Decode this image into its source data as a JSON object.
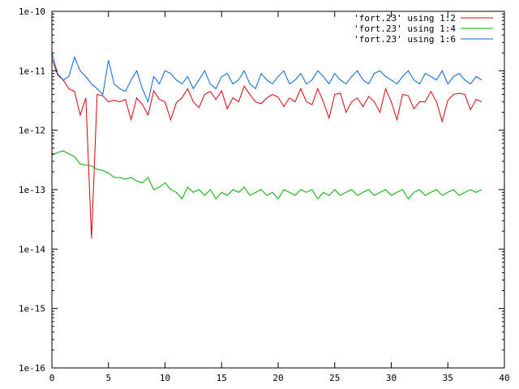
{
  "chart_data": {
    "type": "line",
    "yscale": "log",
    "grid": false,
    "legend_position": "top-right",
    "xlim": [
      0,
      40
    ],
    "ylim_exponent": [
      -16,
      -10
    ],
    "xticks": [
      {
        "value": 0,
        "label": "0"
      },
      {
        "value": 5,
        "label": "5"
      },
      {
        "value": 10,
        "label": "10"
      },
      {
        "value": 15,
        "label": "15"
      },
      {
        "value": 20,
        "label": "20"
      },
      {
        "value": 25,
        "label": "25"
      },
      {
        "value": 30,
        "label": "30"
      },
      {
        "value": 35,
        "label": "35"
      },
      {
        "value": 40,
        "label": "40"
      }
    ],
    "yticks": [
      {
        "exp": -10,
        "label": "1e-10"
      },
      {
        "exp": -11,
        "label": "1e-11"
      },
      {
        "exp": -12,
        "label": "1e-12"
      },
      {
        "exp": -13,
        "label": "1e-13"
      },
      {
        "exp": -14,
        "label": "1e-14"
      },
      {
        "exp": -15,
        "label": "1e-15"
      },
      {
        "exp": -16,
        "label": "1e-16"
      }
    ],
    "x": [
      0,
      0.5,
      1,
      1.5,
      2,
      2.5,
      3,
      3.5,
      4,
      4.5,
      5,
      5.5,
      6,
      6.5,
      7,
      7.5,
      8,
      8.5,
      9,
      9.5,
      10,
      10.5,
      11,
      11.5,
      12,
      12.5,
      13,
      13.5,
      14,
      14.5,
      15,
      15.5,
      16,
      16.5,
      17,
      17.5,
      18,
      18.5,
      19,
      19.5,
      20,
      20.5,
      21,
      21.5,
      22,
      22.5,
      23,
      23.5,
      24,
      24.5,
      25,
      25.5,
      26,
      26.5,
      27,
      27.5,
      28,
      28.5,
      29,
      29.5,
      30,
      30.5,
      31,
      31.5,
      32,
      32.5,
      33,
      33.5,
      34,
      34.5,
      35,
      35.5,
      36,
      36.5,
      37,
      37.5,
      38
    ],
    "series": [
      {
        "name": "'fort.23' using 1:2",
        "color": "#e00000",
        "values": [
          1.6e-11,
          8.5e-12,
          7e-12,
          5e-12,
          4.5e-12,
          1.8e-12,
          3.5e-12,
          1.5e-14,
          4e-12,
          3.8e-12,
          3e-12,
          3.2e-12,
          3e-12,
          3.3e-12,
          1.5e-12,
          3.5e-12,
          2.7e-12,
          1.8e-12,
          4.6e-12,
          3.3e-12,
          3e-12,
          1.5e-12,
          2.9e-12,
          3.5e-12,
          5e-12,
          3e-12,
          2.4e-12,
          4e-12,
          4.5e-12,
          3.3e-12,
          4.6e-12,
          2.3e-12,
          3.5e-12,
          3e-12,
          5.5e-12,
          4e-12,
          3e-12,
          2.8e-12,
          3.5e-12,
          4e-12,
          3.6e-12,
          2.5e-12,
          3.5e-12,
          3e-12,
          5e-12,
          3e-12,
          2.7e-12,
          5e-12,
          3e-12,
          1.6e-12,
          4e-12,
          4.2e-12,
          2e-12,
          3e-12,
          3.5e-12,
          2.5e-12,
          3.7e-12,
          3e-12,
          2e-12,
          5e-12,
          3e-12,
          1.5e-12,
          4e-12,
          3.8e-12,
          2.3e-12,
          3e-12,
          3e-12,
          4.5e-12,
          3e-12,
          1.4e-12,
          3.2e-12,
          4e-12,
          4.2e-12,
          4e-12,
          2.2e-12,
          3.3e-12,
          3e-12
        ]
      },
      {
        "name": "'fort.23' using 1:4",
        "color": "#00b000",
        "values": [
          3.8e-13,
          4.2e-13,
          4.5e-13,
          4e-13,
          3.6e-13,
          2.7e-13,
          2.6e-13,
          2.5e-13,
          2.2e-13,
          2.1e-13,
          1.9e-13,
          1.6e-13,
          1.6e-13,
          1.5e-13,
          1.6e-13,
          1.4e-13,
          1.3e-13,
          1.6e-13,
          1e-13,
          1.1e-13,
          1.3e-13,
          1e-13,
          9e-14,
          7e-14,
          1.1e-13,
          9e-14,
          1e-13,
          8e-14,
          1e-13,
          7e-14,
          9e-14,
          8e-14,
          1e-13,
          9e-14,
          1.1e-13,
          8e-14,
          9e-14,
          1e-13,
          8e-14,
          9e-14,
          7e-14,
          1e-13,
          9e-14,
          8e-14,
          1e-13,
          9e-14,
          1e-13,
          7e-14,
          9e-14,
          8e-14,
          1e-13,
          8e-14,
          9e-14,
          1e-13,
          8e-14,
          9e-14,
          1e-13,
          8e-14,
          9e-14,
          1e-13,
          8e-14,
          9e-14,
          1e-13,
          7e-14,
          9e-14,
          1e-13,
          8e-14,
          9e-14,
          1e-13,
          8e-14,
          9e-14,
          1e-13,
          8e-14,
          9e-14,
          1e-13,
          9e-14,
          1e-13
        ]
      },
      {
        "name": "'fort.23' using 1:6",
        "color": "#0066dd",
        "values": [
          2e-11,
          9e-12,
          7e-12,
          8e-12,
          1.7e-11,
          1e-11,
          8e-12,
          6e-12,
          5e-12,
          4e-12,
          1.5e-11,
          6e-12,
          5e-12,
          4.5e-12,
          7e-12,
          1e-11,
          5e-12,
          3e-12,
          8e-12,
          6e-12,
          1e-11,
          9e-12,
          7e-12,
          6e-12,
          8e-12,
          5e-12,
          7e-12,
          1e-11,
          6e-12,
          5e-12,
          8e-12,
          9e-12,
          6e-12,
          7e-12,
          1e-11,
          6e-12,
          5e-12,
          9e-12,
          7e-12,
          6e-12,
          8e-12,
          1e-11,
          6e-12,
          7e-12,
          9e-12,
          6e-12,
          7e-12,
          1e-11,
          8e-12,
          6e-12,
          9e-12,
          7e-12,
          6e-12,
          8e-12,
          1e-11,
          7e-12,
          6e-12,
          9e-12,
          1e-11,
          8e-12,
          7e-12,
          6e-12,
          8e-12,
          1e-11,
          7e-12,
          6e-12,
          9e-12,
          8e-12,
          7e-12,
          1e-11,
          6e-12,
          8e-12,
          9e-12,
          7e-12,
          6e-12,
          8e-12,
          7e-12
        ]
      }
    ]
  }
}
